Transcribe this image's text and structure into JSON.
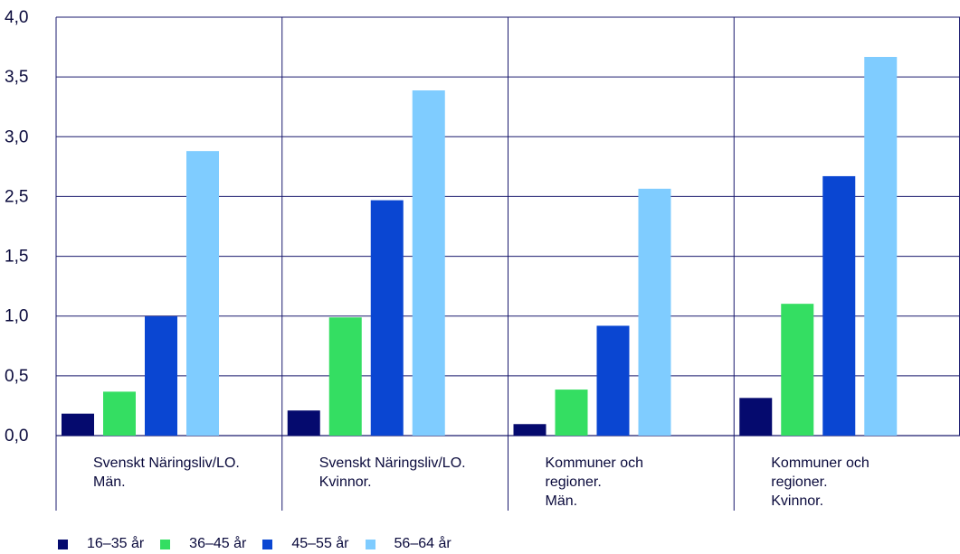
{
  "chart_data": {
    "type": "bar",
    "title": "",
    "xlabel": "",
    "ylabel": "",
    "ylim": [
      0,
      4
    ],
    "yticks": [
      "0,0",
      "0,5",
      "1,0",
      "1,5",
      "2,5",
      "3,0",
      "3,5",
      "4,0"
    ],
    "grid": true,
    "legend_position": "bottom-left",
    "categories": [
      [
        "Svenskt Näringsliv/LO.",
        "Män."
      ],
      [
        "Svenskt Näringsliv/LO.",
        "Kvinnor."
      ],
      [
        "Kommuner och",
        "regioner.",
        "Män."
      ],
      [
        "Kommuner och",
        "regioner.",
        "Kvinnor."
      ]
    ],
    "series": [
      {
        "name": "16–35 år",
        "color": "#050a6e",
        "values": [
          0.21,
          0.24,
          0.11,
          0.36
        ]
      },
      {
        "name": "36–45 år",
        "color": "#34de62",
        "values": [
          0.42,
          1.13,
          0.44,
          1.26
        ]
      },
      {
        "name": "45–55 år",
        "color": "#0a46d2",
        "values": [
          1.14,
          2.25,
          1.05,
          2.48
        ]
      },
      {
        "name": "56–64 år",
        "color": "#7fccff",
        "values": [
          2.72,
          3.3,
          2.36,
          3.62
        ]
      }
    ]
  }
}
